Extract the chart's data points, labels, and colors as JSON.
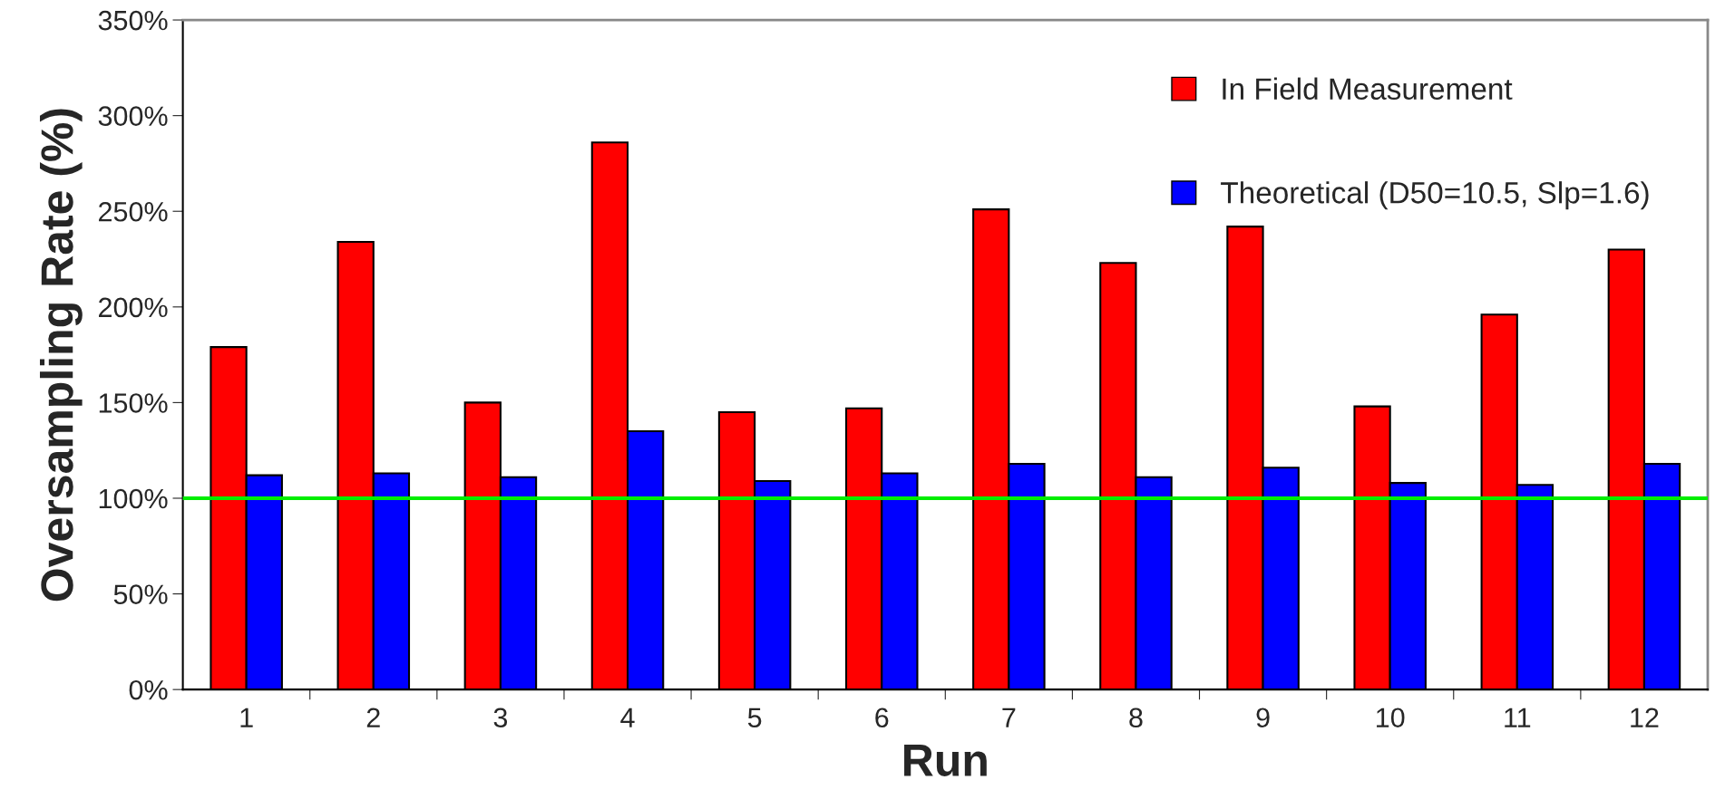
{
  "chart_data": {
    "type": "bar",
    "xlabel": "Run",
    "ylabel": "Oversampling Rate (%)",
    "categories": [
      "1",
      "2",
      "3",
      "4",
      "5",
      "6",
      "7",
      "8",
      "9",
      "10",
      "11",
      "12"
    ],
    "series": [
      {
        "name": "In Field Measurement",
        "color": "#ff0000",
        "values": [
          179,
          234,
          150,
          286,
          145,
          147,
          251,
          223,
          242,
          148,
          196,
          230
        ]
      },
      {
        "name": "Theoretical (D50=10.5, Slp=1.6)",
        "color": "#0000ff",
        "values": [
          112,
          113,
          111,
          135,
          109,
          113,
          118,
          111,
          116,
          108,
          107,
          118
        ]
      }
    ],
    "ylim": [
      0,
      350
    ],
    "yticks": [
      {
        "value": 0,
        "label": "0%"
      },
      {
        "value": 50,
        "label": "50%"
      },
      {
        "value": 100,
        "label": "100%"
      },
      {
        "value": 150,
        "label": "150%"
      },
      {
        "value": 200,
        "label": "200%"
      },
      {
        "value": 250,
        "label": "250%"
      },
      {
        "value": 300,
        "label": "300%"
      },
      {
        "value": 350,
        "label": "350%"
      }
    ],
    "ref_lines": [
      {
        "axis": "y",
        "value": 100,
        "color": "#00ee00"
      }
    ],
    "legend": "top right",
    "grid": false
  }
}
